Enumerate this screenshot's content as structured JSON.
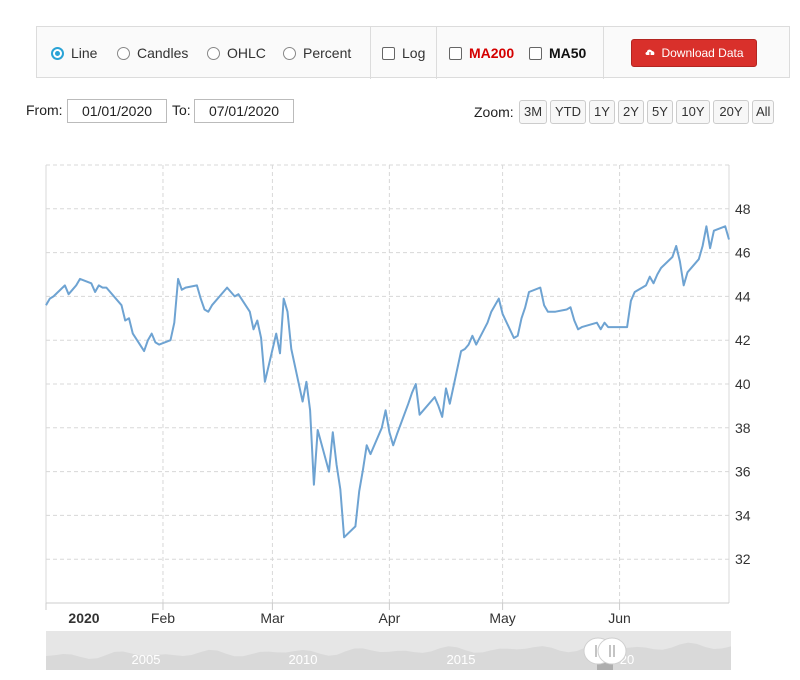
{
  "toolbar": {
    "radios": [
      {
        "label": "Line",
        "selected": true
      },
      {
        "label": "Candles",
        "selected": false
      },
      {
        "label": "OHLC",
        "selected": false
      },
      {
        "label": "Percent",
        "selected": false
      }
    ],
    "log_label": "Log",
    "ma200_label": "MA200",
    "ma50_label": "MA50",
    "download_label": "Download Data",
    "colors": {
      "accent": "#2aa3d6",
      "download": "#d9302b",
      "ma200": "#d40000"
    }
  },
  "range": {
    "from_label": "From:",
    "from_value": "01/01/2020",
    "to_label": "To:",
    "to_value": "07/01/2020"
  },
  "zoom": {
    "label": "Zoom:",
    "options": [
      "3M",
      "YTD",
      "1Y",
      "2Y",
      "5Y",
      "10Y",
      "20Y",
      "All"
    ]
  },
  "chart_data": {
    "type": "line",
    "x_start": "2020-01-01",
    "x_end": "2020-06-30",
    "ylim": [
      30,
      50
    ],
    "yticks": [
      32,
      34,
      36,
      38,
      40,
      42,
      44,
      46,
      48
    ],
    "xticks": [
      {
        "date": "2020-01-01",
        "label": "2020"
      },
      {
        "date": "2020-02-01",
        "label": "Feb"
      },
      {
        "date": "2020-03-01",
        "label": "Mar"
      },
      {
        "date": "2020-04-01",
        "label": "Apr"
      },
      {
        "date": "2020-05-01",
        "label": "May"
      },
      {
        "date": "2020-06-01",
        "label": "Jun"
      }
    ],
    "grid": true,
    "line_color": "#6ea3d2",
    "series": [
      {
        "points": [
          [
            "2020-01-01",
            43.6
          ],
          [
            "2020-01-02",
            43.9
          ],
          [
            "2020-01-03",
            44.0
          ],
          [
            "2020-01-06",
            44.5
          ],
          [
            "2020-01-07",
            44.1
          ],
          [
            "2020-01-08",
            44.3
          ],
          [
            "2020-01-09",
            44.5
          ],
          [
            "2020-01-10",
            44.8
          ],
          [
            "2020-01-13",
            44.6
          ],
          [
            "2020-01-14",
            44.2
          ],
          [
            "2020-01-15",
            44.5
          ],
          [
            "2020-01-16",
            44.4
          ],
          [
            "2020-01-17",
            44.4
          ],
          [
            "2020-01-21",
            43.6
          ],
          [
            "2020-01-22",
            42.9
          ],
          [
            "2020-01-23",
            43.0
          ],
          [
            "2020-01-24",
            42.3
          ],
          [
            "2020-01-27",
            41.5
          ],
          [
            "2020-01-28",
            42.0
          ],
          [
            "2020-01-29",
            42.3
          ],
          [
            "2020-01-30",
            41.9
          ],
          [
            "2020-01-31",
            41.8
          ],
          [
            "2020-02-03",
            42.0
          ],
          [
            "2020-02-04",
            42.8
          ],
          [
            "2020-02-05",
            44.8
          ],
          [
            "2020-02-06",
            44.3
          ],
          [
            "2020-02-07",
            44.4
          ],
          [
            "2020-02-10",
            44.5
          ],
          [
            "2020-02-11",
            43.9
          ],
          [
            "2020-02-12",
            43.4
          ],
          [
            "2020-02-13",
            43.3
          ],
          [
            "2020-02-14",
            43.6
          ],
          [
            "2020-02-18",
            44.4
          ],
          [
            "2020-02-19",
            44.2
          ],
          [
            "2020-02-20",
            44.0
          ],
          [
            "2020-02-21",
            44.1
          ],
          [
            "2020-02-24",
            43.3
          ],
          [
            "2020-02-25",
            42.5
          ],
          [
            "2020-02-26",
            42.9
          ],
          [
            "2020-02-27",
            42.1
          ],
          [
            "2020-02-28",
            40.1
          ],
          [
            "2020-03-02",
            42.3
          ],
          [
            "2020-03-03",
            41.4
          ],
          [
            "2020-03-04",
            43.9
          ],
          [
            "2020-03-05",
            43.3
          ],
          [
            "2020-03-06",
            41.6
          ],
          [
            "2020-03-09",
            39.2
          ],
          [
            "2020-03-10",
            40.1
          ],
          [
            "2020-03-11",
            38.8
          ],
          [
            "2020-03-12",
            35.4
          ],
          [
            "2020-03-13",
            37.9
          ],
          [
            "2020-03-16",
            36.0
          ],
          [
            "2020-03-17",
            37.8
          ],
          [
            "2020-03-18",
            36.3
          ],
          [
            "2020-03-19",
            35.2
          ],
          [
            "2020-03-20",
            33.0
          ],
          [
            "2020-03-23",
            33.5
          ],
          [
            "2020-03-24",
            35.1
          ],
          [
            "2020-03-25",
            36.1
          ],
          [
            "2020-03-26",
            37.2
          ],
          [
            "2020-03-27",
            36.8
          ],
          [
            "2020-03-30",
            38.0
          ],
          [
            "2020-03-31",
            38.8
          ],
          [
            "2020-04-01",
            37.8
          ],
          [
            "2020-04-02",
            37.2
          ],
          [
            "2020-04-03",
            37.7
          ],
          [
            "2020-04-06",
            39.1
          ],
          [
            "2020-04-07",
            39.6
          ],
          [
            "2020-04-08",
            40.0
          ],
          [
            "2020-04-09",
            38.6
          ],
          [
            "2020-04-13",
            39.4
          ],
          [
            "2020-04-14",
            39.0
          ],
          [
            "2020-04-15",
            38.5
          ],
          [
            "2020-04-16",
            39.8
          ],
          [
            "2020-04-17",
            39.1
          ],
          [
            "2020-04-20",
            41.5
          ],
          [
            "2020-04-21",
            41.6
          ],
          [
            "2020-04-22",
            41.8
          ],
          [
            "2020-04-23",
            42.2
          ],
          [
            "2020-04-24",
            41.8
          ],
          [
            "2020-04-27",
            42.8
          ],
          [
            "2020-04-28",
            43.3
          ],
          [
            "2020-04-29",
            43.6
          ],
          [
            "2020-04-30",
            43.9
          ],
          [
            "2020-05-01",
            43.2
          ],
          [
            "2020-05-04",
            42.1
          ],
          [
            "2020-05-05",
            42.2
          ],
          [
            "2020-05-06",
            43.0
          ],
          [
            "2020-05-07",
            43.5
          ],
          [
            "2020-05-08",
            44.2
          ],
          [
            "2020-05-11",
            44.4
          ],
          [
            "2020-05-12",
            43.6
          ],
          [
            "2020-05-13",
            43.3
          ],
          [
            "2020-05-14",
            43.3
          ],
          [
            "2020-05-15",
            43.3
          ],
          [
            "2020-05-18",
            43.4
          ],
          [
            "2020-05-19",
            43.5
          ],
          [
            "2020-05-20",
            42.9
          ],
          [
            "2020-05-21",
            42.5
          ],
          [
            "2020-05-22",
            42.6
          ],
          [
            "2020-05-26",
            42.8
          ],
          [
            "2020-05-27",
            42.5
          ],
          [
            "2020-05-28",
            42.8
          ],
          [
            "2020-05-29",
            42.6
          ],
          [
            "2020-06-01",
            42.6
          ],
          [
            "2020-06-02",
            42.6
          ],
          [
            "2020-06-03",
            42.6
          ],
          [
            "2020-06-04",
            43.8
          ],
          [
            "2020-06-05",
            44.2
          ],
          [
            "2020-06-08",
            44.5
          ],
          [
            "2020-06-09",
            44.9
          ],
          [
            "2020-06-10",
            44.6
          ],
          [
            "2020-06-11",
            45.0
          ],
          [
            "2020-06-12",
            45.3
          ],
          [
            "2020-06-15",
            45.8
          ],
          [
            "2020-06-16",
            46.3
          ],
          [
            "2020-06-17",
            45.6
          ],
          [
            "2020-06-18",
            44.5
          ],
          [
            "2020-06-19",
            45.1
          ],
          [
            "2020-06-22",
            45.7
          ],
          [
            "2020-06-23",
            46.3
          ],
          [
            "2020-06-24",
            47.2
          ],
          [
            "2020-06-25",
            46.2
          ],
          [
            "2020-06-26",
            47.0
          ],
          [
            "2020-06-29",
            47.2
          ],
          [
            "2020-06-30",
            46.6
          ]
        ]
      }
    ],
    "navigator": {
      "labels": [
        "2005",
        "2010",
        "2015",
        "20"
      ],
      "fill_color": "#d9d9d9"
    }
  }
}
